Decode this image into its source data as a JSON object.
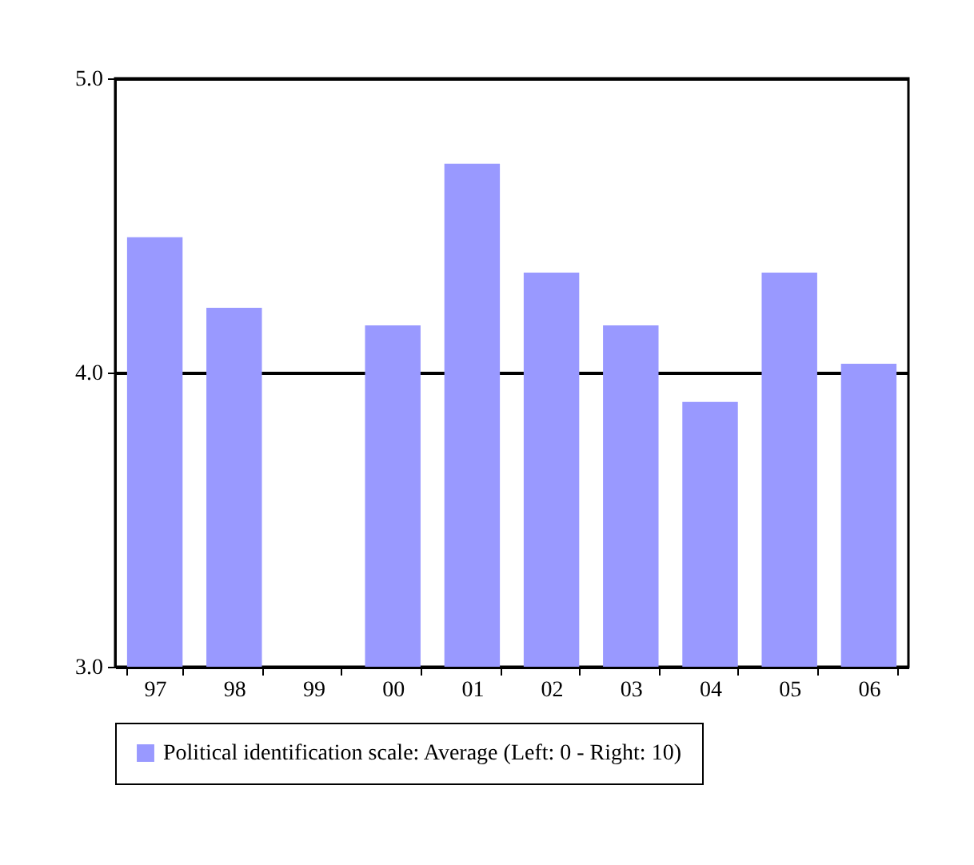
{
  "chart_data": {
    "type": "bar",
    "categories": [
      "97",
      "98",
      "99",
      "00",
      "01",
      "02",
      "03",
      "04",
      "05",
      "06"
    ],
    "series": [
      {
        "name": "Political identification scale: Average (Left: 0 - Right: 10)",
        "color": "#9999ff",
        "values": [
          4.46,
          4.22,
          null,
          4.16,
          4.71,
          4.34,
          4.16,
          3.9,
          4.34,
          4.03
        ]
      }
    ],
    "ylim": [
      3.0,
      5.0
    ],
    "yticks": [
      {
        "value": 3,
        "label": "3.0"
      },
      {
        "value": 4,
        "label": "4.0"
      },
      {
        "value": 5,
        "label": "5.0"
      }
    ],
    "grid": "y",
    "legend": "bottom"
  }
}
